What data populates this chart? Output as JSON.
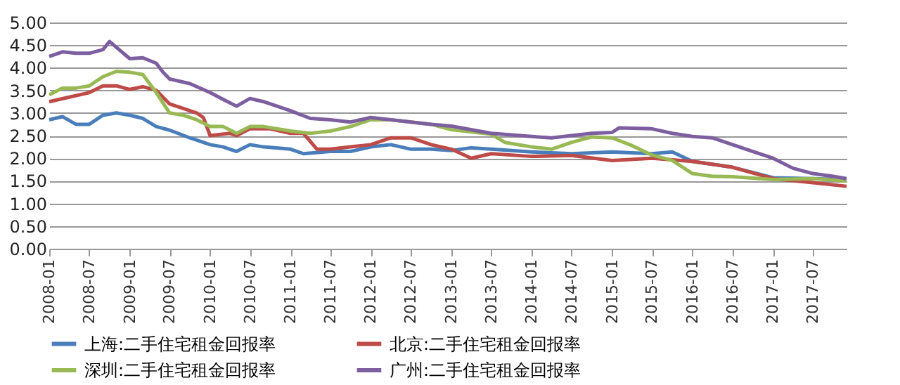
{
  "chart_data": {
    "type": "line",
    "xlim": [
      "2008-01",
      "2017-12"
    ],
    "ylim": [
      0,
      5
    ],
    "xticks": [
      "2008-01",
      "2008-07",
      "2009-01",
      "2009-07",
      "2010-01",
      "2010-07",
      "2011-01",
      "2011-07",
      "2012-01",
      "2012-07",
      "2013-01",
      "2013-07",
      "2014-01",
      "2014-07",
      "2015-01",
      "2015-07",
      "2016-01",
      "2016-07",
      "2017-01",
      "2017-07"
    ],
    "yticks": [
      {
        "value": 0,
        "label": "0.00"
      },
      {
        "value": 0.5,
        "label": "0.50"
      },
      {
        "value": 1,
        "label": "1.00"
      },
      {
        "value": 1.5,
        "label": "1.50"
      },
      {
        "value": 2,
        "label": "2.00"
      },
      {
        "value": 2.5,
        "label": "2.50"
      },
      {
        "value": 3,
        "label": "3.00"
      },
      {
        "value": 3.5,
        "label": "3.50"
      },
      {
        "value": 4,
        "label": "4.00"
      },
      {
        "value": 4.5,
        "label": "4.50"
      },
      {
        "value": 5,
        "label": "5.00"
      }
    ],
    "grid": "y",
    "legend": "bottom",
    "marker": "none",
    "line_style": "solid",
    "series": [
      {
        "name": "上海:二手住宅租金回报率",
        "color": "#4a7ebb",
        "x": [
          "2008-01",
          "2008-03",
          "2008-05",
          "2008-07",
          "2008-09",
          "2008-11",
          "2009-01",
          "2009-03",
          "2009-05",
          "2009-07",
          "2009-10",
          "2010-01",
          "2010-03",
          "2010-05",
          "2010-07",
          "2010-09",
          "2011-01",
          "2011-03",
          "2011-07",
          "2011-10",
          "2012-01",
          "2012-04",
          "2012-07",
          "2012-10",
          "2013-01",
          "2013-04",
          "2013-07",
          "2014-01",
          "2014-07",
          "2015-01",
          "2015-07",
          "2015-10",
          "2016-01",
          "2016-07",
          "2017-01",
          "2017-07",
          "2017-12"
        ],
        "values": [
          2.85,
          2.92,
          2.75,
          2.75,
          2.95,
          3.0,
          2.95,
          2.88,
          2.7,
          2.62,
          2.45,
          2.3,
          2.25,
          2.15,
          2.3,
          2.25,
          2.2,
          2.1,
          2.15,
          2.15,
          2.25,
          2.3,
          2.2,
          2.2,
          2.17,
          2.23,
          2.2,
          2.14,
          2.1,
          2.14,
          2.1,
          2.14,
          1.93,
          1.8,
          1.57,
          1.55,
          1.53
        ]
      },
      {
        "name": "北京:二手住宅租金回报率",
        "color": "#be4b48",
        "x": [
          "2008-01",
          "2008-04",
          "2008-07",
          "2008-09",
          "2008-11",
          "2009-01",
          "2009-03",
          "2009-05",
          "2009-07",
          "2009-09",
          "2009-11",
          "2009-12",
          "2010-01",
          "2010-04",
          "2010-05",
          "2010-07",
          "2010-10",
          "2011-01",
          "2011-03",
          "2011-05",
          "2011-07",
          "2011-10",
          "2012-01",
          "2012-04",
          "2012-07",
          "2012-10",
          "2013-01",
          "2013-04",
          "2013-07",
          "2014-01",
          "2014-07",
          "2015-01",
          "2015-07",
          "2016-01",
          "2016-07",
          "2017-01",
          "2017-07",
          "2017-12"
        ],
        "values": [
          3.25,
          3.35,
          3.45,
          3.6,
          3.6,
          3.52,
          3.58,
          3.5,
          3.2,
          3.1,
          3.0,
          2.9,
          2.5,
          2.55,
          2.5,
          2.65,
          2.65,
          2.55,
          2.55,
          2.2,
          2.2,
          2.25,
          2.3,
          2.45,
          2.45,
          2.3,
          2.2,
          2.0,
          2.1,
          2.04,
          2.06,
          1.95,
          2.0,
          1.93,
          1.8,
          1.55,
          1.46,
          1.38
        ]
      },
      {
        "name": "深圳:二手住宅租金回报率",
        "color": "#98b954",
        "x": [
          "2008-01",
          "2008-03",
          "2008-05",
          "2008-07",
          "2008-09",
          "2008-11",
          "2009-01",
          "2009-03",
          "2009-05",
          "2009-07",
          "2009-09",
          "2009-11",
          "2010-01",
          "2010-03",
          "2010-05",
          "2010-07",
          "2010-09",
          "2011-01",
          "2011-04",
          "2011-07",
          "2011-10",
          "2012-01",
          "2012-04",
          "2012-07",
          "2012-10",
          "2013-01",
          "2013-07",
          "2013-09",
          "2014-01",
          "2014-04",
          "2014-07",
          "2014-10",
          "2015-01",
          "2015-04",
          "2015-07",
          "2015-10",
          "2016-01",
          "2016-04",
          "2016-07",
          "2017-01",
          "2017-07",
          "2017-12"
        ],
        "values": [
          3.4,
          3.55,
          3.55,
          3.6,
          3.8,
          3.92,
          3.9,
          3.85,
          3.45,
          3.0,
          2.95,
          2.85,
          2.7,
          2.7,
          2.55,
          2.7,
          2.7,
          2.6,
          2.55,
          2.6,
          2.7,
          2.85,
          2.85,
          2.8,
          2.75,
          2.63,
          2.53,
          2.35,
          2.25,
          2.2,
          2.35,
          2.47,
          2.45,
          2.28,
          2.07,
          1.95,
          1.66,
          1.6,
          1.59,
          1.53,
          1.55,
          1.5
        ]
      },
      {
        "name": "广州:二手住宅租金回报率",
        "color": "#7d5fa0",
        "x": [
          "2008-01",
          "2008-03",
          "2008-05",
          "2008-07",
          "2008-09",
          "2008-10",
          "2009-01",
          "2009-03",
          "2009-05",
          "2009-06",
          "2009-07",
          "2009-10",
          "2010-01",
          "2010-03",
          "2010-05",
          "2010-07",
          "2010-09",
          "2011-01",
          "2011-04",
          "2011-07",
          "2011-10",
          "2012-01",
          "2012-04",
          "2012-07",
          "2012-10",
          "2013-01",
          "2013-07",
          "2014-01",
          "2014-04",
          "2014-07",
          "2014-10",
          "2015-01",
          "2015-02",
          "2015-07",
          "2015-10",
          "2016-01",
          "2016-04",
          "2016-07",
          "2016-10",
          "2017-01",
          "2017-04",
          "2017-07",
          "2017-10",
          "2017-12"
        ],
        "values": [
          4.25,
          4.35,
          4.32,
          4.32,
          4.4,
          4.58,
          4.2,
          4.22,
          4.1,
          3.9,
          3.75,
          3.65,
          3.45,
          3.3,
          3.15,
          3.32,
          3.25,
          3.05,
          2.88,
          2.85,
          2.8,
          2.9,
          2.85,
          2.8,
          2.75,
          2.71,
          2.55,
          2.48,
          2.45,
          2.5,
          2.55,
          2.57,
          2.67,
          2.65,
          2.55,
          2.48,
          2.45,
          2.3,
          2.15,
          2.0,
          1.78,
          1.66,
          1.6,
          1.55
        ]
      }
    ]
  }
}
